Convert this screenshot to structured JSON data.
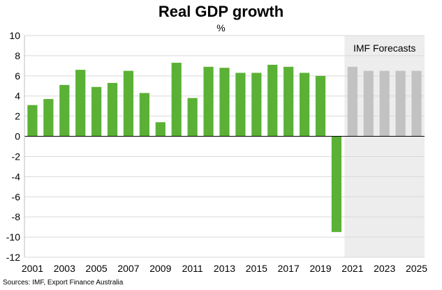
{
  "chart_data": {
    "type": "bar",
    "title": "Real GDP growth",
    "unit": "%",
    "source": "Sources: IMF, Export Finance Australia",
    "xlabel": "",
    "ylabel": "",
    "ylim": [
      -12,
      10
    ],
    "y_ticks": [
      10,
      8,
      6,
      4,
      2,
      0,
      -2,
      -4,
      -6,
      -8,
      -10,
      -12
    ],
    "grid": true,
    "x_tick_labels": [
      "2001",
      "2003",
      "2005",
      "2007",
      "2009",
      "2011",
      "2013",
      "2015",
      "2017",
      "2019",
      "2021",
      "2023",
      "2025"
    ],
    "forecast_label": "IMF Forecasts",
    "forecast_start_year": 2021,
    "colors": {
      "actual": "#5BB135",
      "forecast": "#C2C2C2",
      "forecast_band": "#EDEDED",
      "grid": "#D9D9D9",
      "axis": "#000000"
    },
    "categories": [
      2001,
      2002,
      2003,
      2004,
      2005,
      2006,
      2007,
      2008,
      2009,
      2010,
      2011,
      2012,
      2013,
      2014,
      2015,
      2016,
      2017,
      2018,
      2019,
      2020,
      2021,
      2022,
      2023,
      2024,
      2025
    ],
    "series": [
      {
        "values": [
          3.1,
          3.7,
          5.1,
          6.6,
          4.9,
          5.3,
          6.5,
          4.3,
          1.4,
          7.3,
          3.8,
          6.9,
          6.8,
          6.3,
          6.3,
          7.1,
          6.9,
          6.3,
          6.0,
          -9.5,
          null,
          null,
          null,
          null,
          null
        ]
      },
      {
        "values": [
          null,
          null,
          null,
          null,
          null,
          null,
          null,
          null,
          null,
          null,
          null,
          null,
          null,
          null,
          null,
          null,
          null,
          null,
          null,
          null,
          6.9,
          6.5,
          6.5,
          6.5,
          6.5
        ]
      }
    ]
  }
}
